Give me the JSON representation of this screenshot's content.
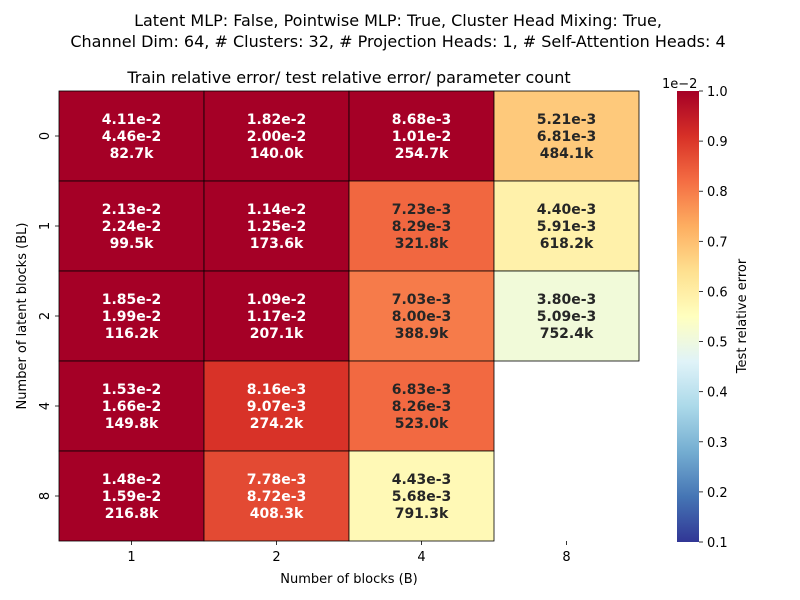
{
  "chart_data": {
    "type": "heatmap",
    "suptitle_line1": "Latent MLP: False, Pointwise MLP: True, Cluster Head Mixing: True,",
    "suptitle_line2": "Channel Dim: 64, # Clusters: 32, # Projection Heads: 1, # Self-Attention Heads: 4",
    "title": "Train relative error/ test relative error/ parameter count",
    "xlabel": "Number of blocks (B)",
    "ylabel": "Number of latent blocks (BL)",
    "x_categories": [
      "1",
      "2",
      "4",
      "8"
    ],
    "y_categories": [
      "0",
      "1",
      "2",
      "4",
      "8"
    ],
    "colorbar": {
      "label": "Test relative error",
      "offset_text": "1e−2",
      "range": [
        0.1,
        1.0
      ],
      "ticks": [
        "0.1",
        "0.2",
        "0.3",
        "0.4",
        "0.5",
        "0.6",
        "0.7",
        "0.8",
        "0.9",
        "1.0"
      ],
      "colormap": "RdYlBu_r"
    },
    "cells": [
      [
        {
          "train": "4.11e-2",
          "test": "4.46e-2",
          "params": "82.7k",
          "value": 4.46
        },
        {
          "train": "1.82e-2",
          "test": "2.00e-2",
          "params": "140.0k",
          "value": 2.0
        },
        {
          "train": "8.68e-3",
          "test": "1.01e-2",
          "params": "254.7k",
          "value": 1.01
        },
        {
          "train": "5.21e-3",
          "test": "6.81e-3",
          "params": "484.1k",
          "value": 0.681
        }
      ],
      [
        {
          "train": "2.13e-2",
          "test": "2.24e-2",
          "params": "99.5k",
          "value": 2.24
        },
        {
          "train": "1.14e-2",
          "test": "1.25e-2",
          "params": "173.6k",
          "value": 1.25
        },
        {
          "train": "7.23e-3",
          "test": "8.29e-3",
          "params": "321.8k",
          "value": 0.829
        },
        {
          "train": "4.40e-3",
          "test": "5.91e-3",
          "params": "618.2k",
          "value": 0.591
        }
      ],
      [
        {
          "train": "1.85e-2",
          "test": "1.99e-2",
          "params": "116.2k",
          "value": 1.99
        },
        {
          "train": "1.09e-2",
          "test": "1.17e-2",
          "params": "207.1k",
          "value": 1.17
        },
        {
          "train": "7.03e-3",
          "test": "8.00e-3",
          "params": "388.9k",
          "value": 0.8
        },
        {
          "train": "3.80e-3",
          "test": "5.09e-3",
          "params": "752.4k",
          "value": 0.509
        }
      ],
      [
        {
          "train": "1.53e-2",
          "test": "1.66e-2",
          "params": "149.8k",
          "value": 1.66
        },
        {
          "train": "8.16e-3",
          "test": "9.07e-3",
          "params": "274.2k",
          "value": 0.907
        },
        {
          "train": "6.83e-3",
          "test": "8.26e-3",
          "params": "523.0k",
          "value": 0.826
        },
        null
      ],
      [
        {
          "train": "1.48e-2",
          "test": "1.59e-2",
          "params": "216.8k",
          "value": 1.59
        },
        {
          "train": "7.78e-3",
          "test": "8.72e-3",
          "params": "408.3k",
          "value": 0.872
        },
        {
          "train": "4.43e-3",
          "test": "5.68e-3",
          "params": "791.3k",
          "value": 0.568
        },
        null
      ]
    ]
  }
}
